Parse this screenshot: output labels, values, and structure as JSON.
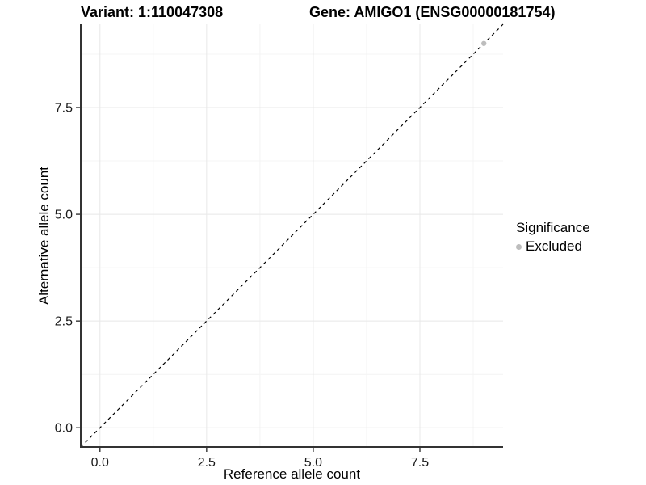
{
  "titles": {
    "left": "Variant: 1:110047308",
    "right": "Gene: AMIGO1 (ENSG00000181754)"
  },
  "chart_data": {
    "type": "scatter",
    "title": "Variant: 1:110047308  /  Gene: AMIGO1 (ENSG00000181754)",
    "xlabel": "Reference allele count",
    "ylabel": "Alternative allele count",
    "xlim": [
      -0.45,
      9.45
    ],
    "ylim": [
      -0.45,
      9.45
    ],
    "x_ticks": {
      "values": [
        0,
        2.5,
        5,
        7.5
      ],
      "labels": [
        "0.0",
        "2.5",
        "5.0",
        "7.5"
      ]
    },
    "y_ticks": {
      "values": [
        0,
        2.5,
        5,
        7.5
      ],
      "labels": [
        "0.0",
        "2.5",
        "5.0",
        "7.5"
      ]
    },
    "minor_ticks": [
      1.25,
      3.75,
      6.25,
      8.75
    ],
    "grid": "major+minor on white panel",
    "reference_line": {
      "kind": "abline",
      "slope": 1,
      "intercept": 0,
      "style": "dashed",
      "color": "#000000"
    },
    "series": [
      {
        "name": "Excluded",
        "color": "#bdbdbd",
        "points": [
          [
            9,
            9
          ]
        ]
      }
    ],
    "legend": {
      "title": "Significance",
      "position": "right",
      "items": [
        {
          "label": "Excluded",
          "color": "#bdbdbd"
        }
      ]
    }
  },
  "colors": {
    "background": "#ffffff",
    "axis_line": "#333333",
    "grid_major": "#e8e8e8",
    "grid_minor": "#f4f4f4",
    "tick_mark": "#333333",
    "excluded_point": "#bdbdbd",
    "text": "#000000"
  }
}
